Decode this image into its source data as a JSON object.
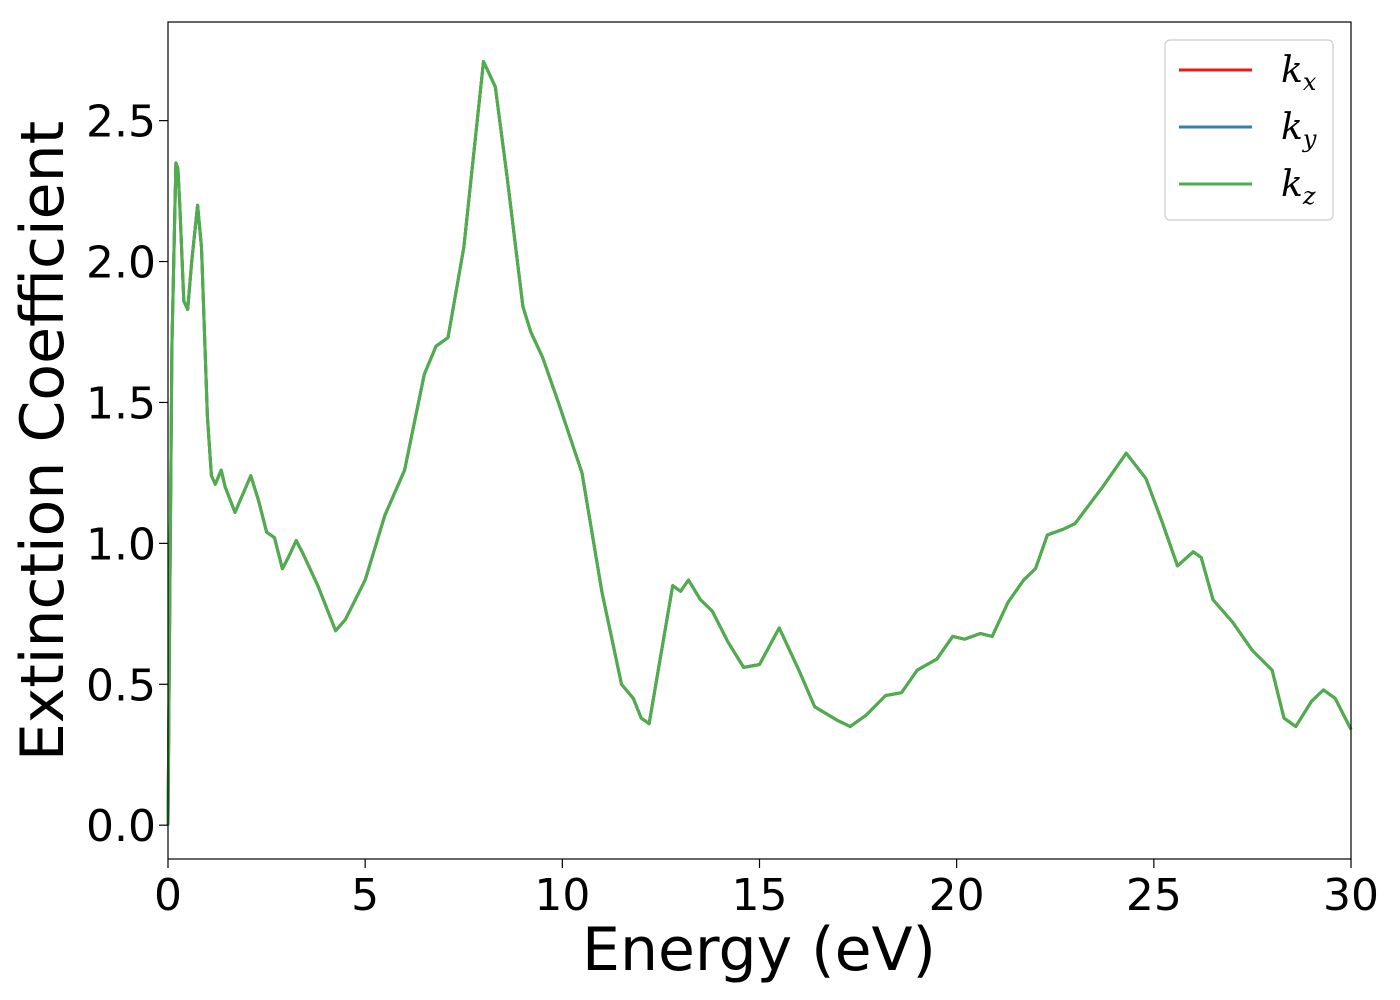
{
  "chart_data": {
    "type": "line",
    "xlabel": "Energy (eV)",
    "ylabel": "Extinction Coefficient",
    "xlim": [
      0,
      30
    ],
    "ylim": [
      -0.12,
      2.85
    ],
    "xticks": [
      0,
      5,
      10,
      15,
      20,
      25,
      30
    ],
    "xtick_labels": [
      "0",
      "5",
      "10",
      "15",
      "20",
      "25",
      "30"
    ],
    "yticks": [
      0.0,
      0.5,
      1.0,
      1.5,
      2.0,
      2.5
    ],
    "ytick_labels": [
      "0.0",
      "0.5",
      "1.0",
      "1.5",
      "2.0",
      "2.5"
    ],
    "grid": false,
    "legend_position": "top-right",
    "series": [
      {
        "name": "k",
        "subscript": "x",
        "color": "#e41a1c"
      },
      {
        "name": "k",
        "subscript": "y",
        "color": "#377eb8"
      },
      {
        "name": "k",
        "subscript": "z",
        "color": "#4daf4a"
      }
    ],
    "x": [
      0,
      0.1,
      0.2,
      0.25,
      0.3,
      0.4,
      0.5,
      0.6,
      0.75,
      0.85,
      1.0,
      1.1,
      1.2,
      1.35,
      1.45,
      1.7,
      2.1,
      2.3,
      2.5,
      2.7,
      2.9,
      3.05,
      3.25,
      3.4,
      3.8,
      4.25,
      4.5,
      5.0,
      5.5,
      6.0,
      6.5,
      6.8,
      7.1,
      7.5,
      8.0,
      8.3,
      8.6,
      9.0,
      9.2,
      9.5,
      9.9,
      10.5,
      11.0,
      11.5,
      11.8,
      12.0,
      12.2,
      12.8,
      13.0,
      13.2,
      13.5,
      13.8,
      14.2,
      14.6,
      15.0,
      15.5,
      16.0,
      16.4,
      17.0,
      17.3,
      17.7,
      18.2,
      18.6,
      19.0,
      19.5,
      19.9,
      20.2,
      20.6,
      20.9,
      21.3,
      21.7,
      22.0,
      22.3,
      22.7,
      23.0,
      23.7,
      24.3,
      24.8,
      25.2,
      25.6,
      26.0,
      26.2,
      26.5,
      27.0,
      27.5,
      28.0,
      28.3,
      28.6,
      29.0,
      29.3,
      29.6,
      30.0
    ],
    "values": [
      0.0,
      1.7,
      2.35,
      2.33,
      2.2,
      1.86,
      1.83,
      2.0,
      2.2,
      2.05,
      1.45,
      1.24,
      1.21,
      1.26,
      1.2,
      1.11,
      1.24,
      1.15,
      1.04,
      1.02,
      0.91,
      0.95,
      1.01,
      0.97,
      0.85,
      0.69,
      0.73,
      0.87,
      1.1,
      1.26,
      1.6,
      1.7,
      1.73,
      2.05,
      2.71,
      2.62,
      2.3,
      1.84,
      1.75,
      1.66,
      1.5,
      1.25,
      0.83,
      0.5,
      0.45,
      0.38,
      0.36,
      0.85,
      0.83,
      0.87,
      0.8,
      0.76,
      0.65,
      0.56,
      0.57,
      0.7,
      0.55,
      0.42,
      0.37,
      0.35,
      0.39,
      0.46,
      0.47,
      0.55,
      0.59,
      0.67,
      0.66,
      0.68,
      0.67,
      0.79,
      0.87,
      0.91,
      1.03,
      1.05,
      1.07,
      1.2,
      1.32,
      1.23,
      1.08,
      0.92,
      0.97,
      0.95,
      0.8,
      0.72,
      0.62,
      0.55,
      0.38,
      0.35,
      0.44,
      0.48,
      0.45,
      0.34
    ]
  }
}
